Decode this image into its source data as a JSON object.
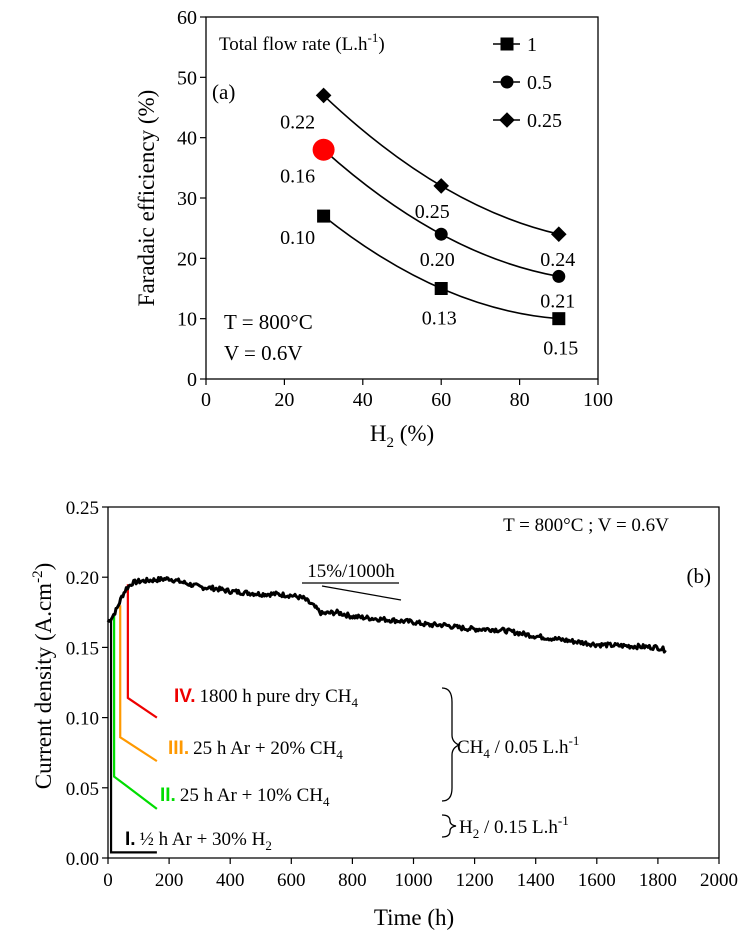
{
  "chart_data": [
    {
      "type": "line",
      "panel_label": "(a)",
      "xlabel": "H",
      "xlabel_sub": "2",
      "xlabel_tail": " (%)",
      "ylabel": "Faradaic efficiency (%)",
      "xlim": [
        0,
        100
      ],
      "ylim": [
        0,
        60
      ],
      "xticks": [
        0,
        20,
        40,
        60,
        80,
        100
      ],
      "yticks": [
        0,
        10,
        20,
        30,
        40,
        50,
        60
      ],
      "legend_title": "Total flow rate (L.h",
      "legend_title_sup": "-1",
      "legend_title_tail": ")",
      "legend_position": "top-right",
      "conditions": [
        "T = 800°C",
        "V = 0.6V"
      ],
      "x": [
        30,
        60,
        90
      ],
      "series": [
        {
          "name": "1",
          "marker": "square",
          "values": [
            27,
            15,
            10
          ],
          "labels": [
            "0.10",
            "0.13",
            "0.15"
          ]
        },
        {
          "name": "0.5",
          "marker": "circle",
          "values": [
            38,
            24,
            17
          ],
          "labels": [
            "0.16",
            "0.20",
            "0.21"
          ]
        },
        {
          "name": "0.25",
          "marker": "diamond",
          "values": [
            47,
            32,
            24
          ],
          "labels": [
            "0.22",
            "0.25",
            "0.24"
          ]
        }
      ],
      "highlight": {
        "series": "0.5",
        "x": 30,
        "value": 38,
        "color": "#ff0000"
      }
    },
    {
      "type": "line",
      "panel_label": "(b)",
      "xlabel": "Time (h)",
      "ylabel": "Current density (A.cm",
      "ylabel_sup": "-2",
      "ylabel_tail": ")",
      "xlim": [
        0,
        2000
      ],
      "ylim": [
        0,
        0.25
      ],
      "xticks": [
        0,
        200,
        400,
        600,
        800,
        1000,
        1200,
        1400,
        1600,
        1800,
        2000
      ],
      "yticks": [
        "0.00",
        "0.05",
        "0.10",
        "0.15",
        "0.20",
        "0.25"
      ],
      "conditions": "T = 800°C ; V = 0.6V",
      "slope_label": "15%/1000h",
      "series": [
        {
          "name": "current density",
          "color": "#000000",
          "points": [
            [
              0,
              0.168
            ],
            [
              15,
              0.172
            ],
            [
              30,
              0.178
            ],
            [
              45,
              0.186
            ],
            [
              60,
              0.192
            ],
            [
              80,
              0.196
            ],
            [
              100,
              0.197
            ],
            [
              150,
              0.198
            ],
            [
              200,
              0.199
            ],
            [
              250,
              0.196
            ],
            [
              300,
              0.193
            ],
            [
              350,
              0.192
            ],
            [
              400,
              0.19
            ],
            [
              450,
              0.189
            ],
            [
              500,
              0.188
            ],
            [
              550,
              0.188
            ],
            [
              600,
              0.187
            ],
            [
              640,
              0.185
            ],
            [
              670,
              0.18
            ],
            [
              700,
              0.174
            ],
            [
              750,
              0.175
            ],
            [
              800,
              0.172
            ],
            [
              900,
              0.17
            ],
            [
              1000,
              0.168
            ],
            [
              1050,
              0.166
            ],
            [
              1100,
              0.166
            ],
            [
              1150,
              0.164
            ],
            [
              1200,
              0.163
            ],
            [
              1250,
              0.163
            ],
            [
              1300,
              0.162
            ],
            [
              1400,
              0.158
            ],
            [
              1500,
              0.155
            ],
            [
              1600,
              0.152
            ],
            [
              1700,
              0.151
            ],
            [
              1800,
              0.15
            ],
            [
              1825,
              0.148
            ]
          ]
        }
      ],
      "steps": [
        {
          "id": "I.",
          "text": "½ h Ar + 30% H",
          "sub": "2",
          "color": "#000000",
          "start": [
            10,
            0.17
          ],
          "corner": [
            10,
            0.004
          ],
          "end": [
            160,
            0.004
          ]
        },
        {
          "id": "II.",
          "text": "25 h Ar + 10% CH",
          "sub": "4",
          "color": "#00dd00",
          "start": [
            20,
            0.173
          ],
          "corner": [
            20,
            0.058
          ],
          "end": [
            160,
            0.035
          ]
        },
        {
          "id": "III.",
          "text": "25 h Ar + 20% CH",
          "sub": "4",
          "color": "#ff9900",
          "start": [
            40,
            0.18
          ],
          "corner": [
            40,
            0.086
          ],
          "end": [
            160,
            0.069
          ]
        },
        {
          "id": "IV.",
          "text": "1800 h pure dry CH",
          "sub": "4",
          "color": "#ee0000",
          "start": [
            65,
            0.195
          ],
          "corner": [
            65,
            0.114
          ],
          "end": [
            160,
            0.1
          ]
        }
      ],
      "brackets": [
        {
          "text": "CH",
          "sub": "4",
          "tail": " / 0.05 L.h",
          "sup": "-1"
        },
        {
          "text": "H",
          "sub": "2",
          "tail": " / 0.15 L.h",
          "sup": "-1"
        }
      ]
    }
  ]
}
